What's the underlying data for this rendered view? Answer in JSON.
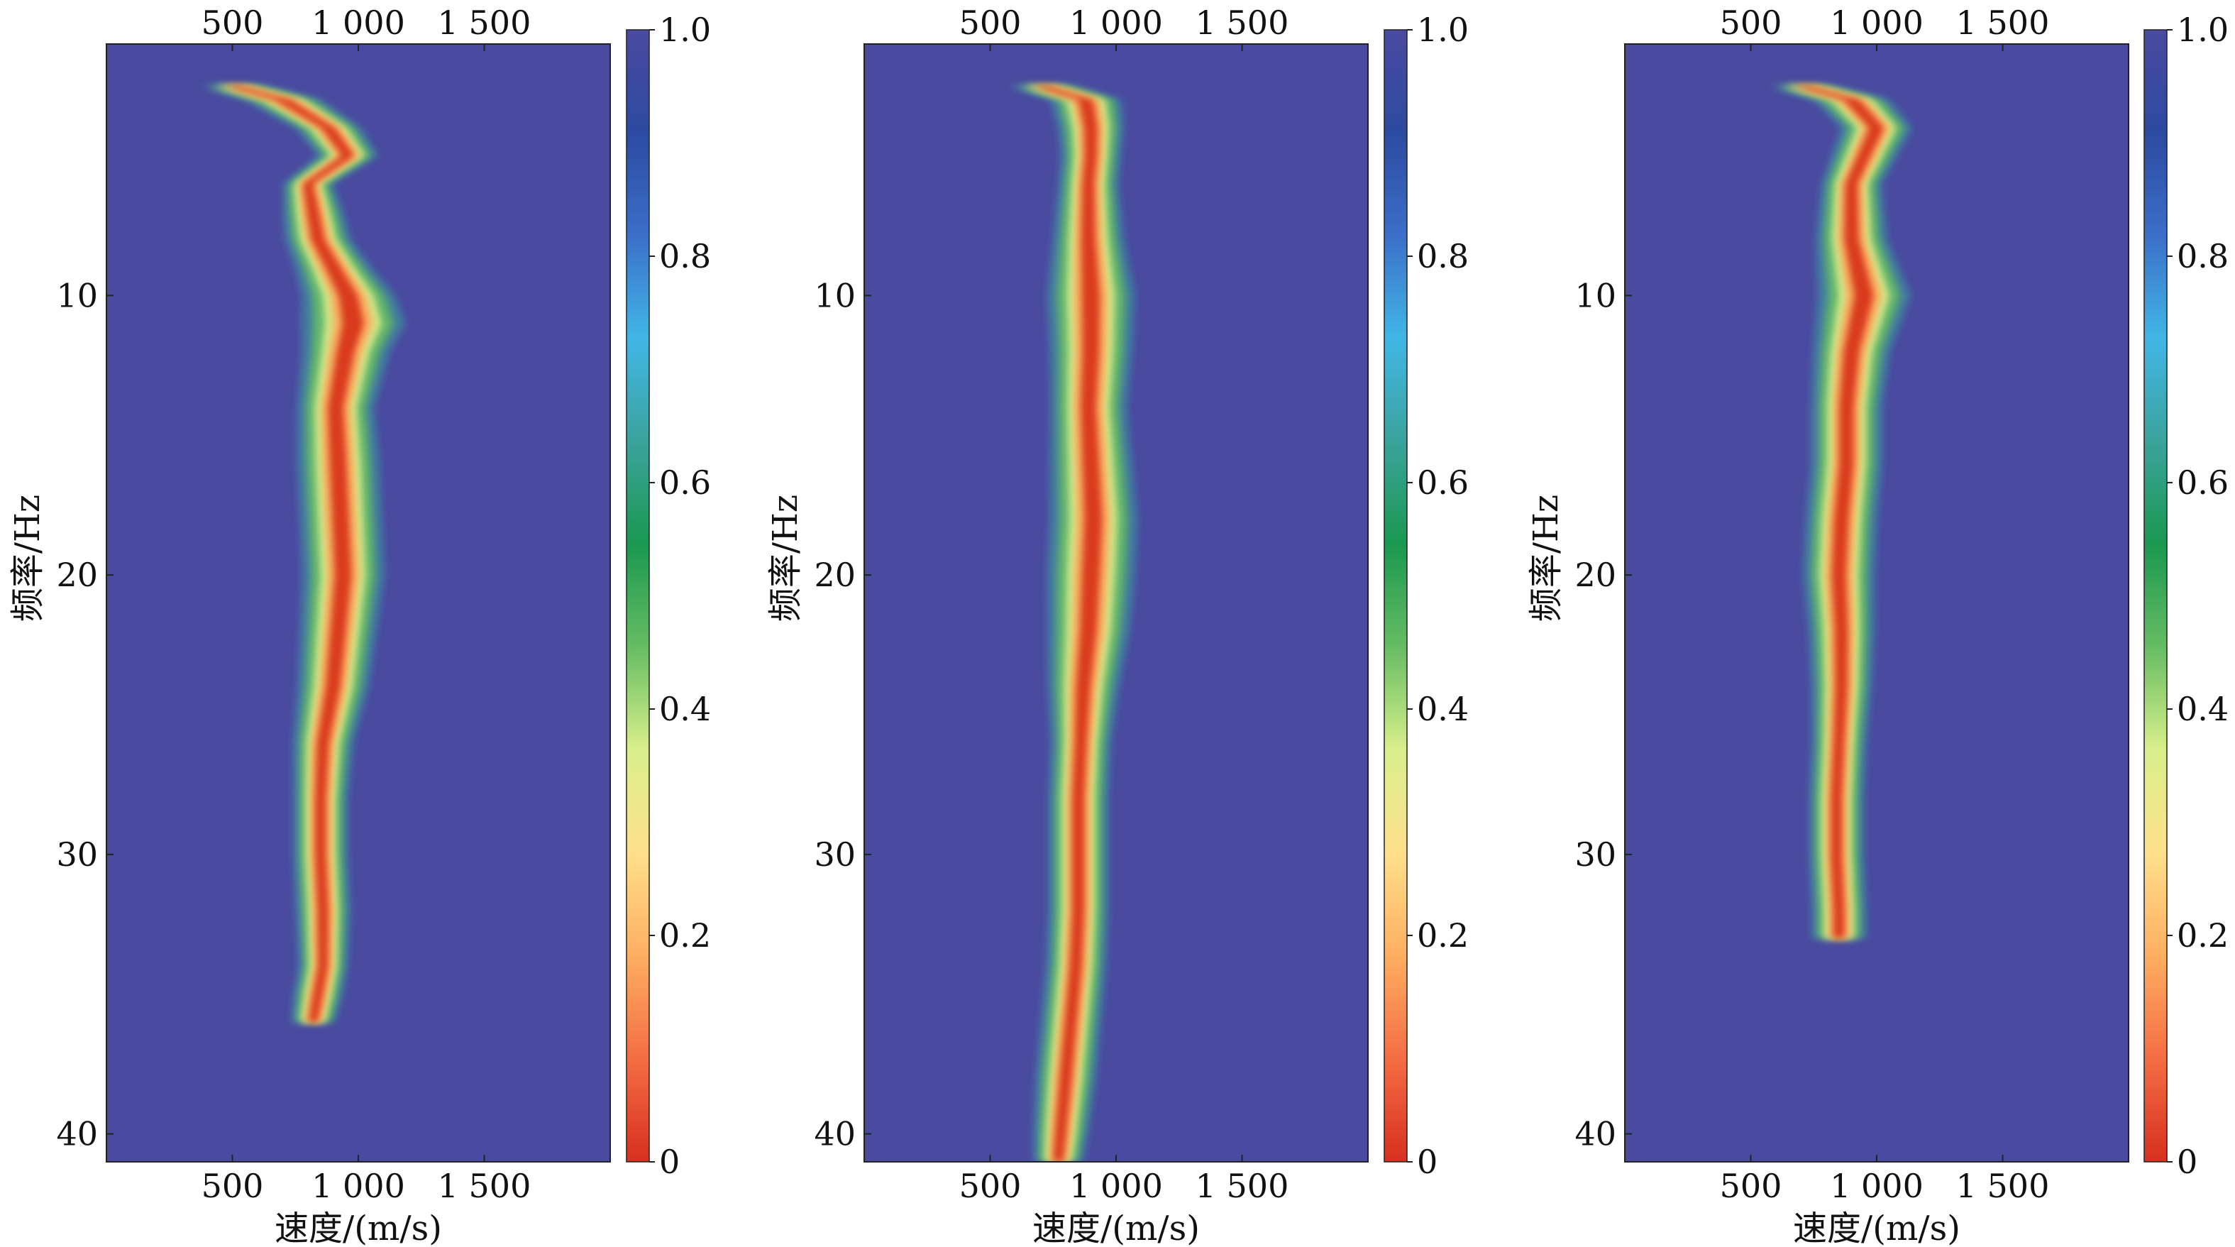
{
  "colors": {
    "background": "#4a4aa0",
    "colormap": [
      "#d7301f",
      "#f46d43",
      "#fdae61",
      "#fee08b",
      "#d9ef8b",
      "#66bd63",
      "#1a9850",
      "#3ba39c",
      "#41b6e6",
      "#3b6fc8",
      "#2c4aa0",
      "#4a4aa0"
    ],
    "peak": "#d93a1f"
  },
  "chart_data": [
    {
      "type": "heatmap",
      "xlabel": "速度/(m/s)",
      "ylabel": "频率/Hz",
      "xlim": [
        0,
        2000
      ],
      "ylim": [
        1,
        41
      ],
      "x_ticks": [
        "500",
        "1 000",
        "1 500"
      ],
      "x_tick_values": [
        500,
        1000,
        1500
      ],
      "y_ticks": [
        "10",
        "20",
        "30",
        "40"
      ],
      "y_tick_values": [
        10,
        20,
        30,
        40
      ],
      "y_inverted": true,
      "colorbar": {
        "ticks": [
          "0",
          "0.2",
          "0.4",
          "0.6",
          "0.8",
          "1.0"
        ],
        "range": [
          0,
          1
        ]
      },
      "ridge": {
        "freq": [
          2.5,
          3,
          4,
          5,
          6,
          7,
          8,
          9,
          10,
          11,
          12,
          14,
          16,
          18,
          20,
          22,
          24,
          26,
          28,
          30,
          32,
          34,
          35,
          36
        ],
        "velocity": [
          500,
          700,
          880,
          960,
          800,
          820,
          840,
          900,
          960,
          980,
          950,
          910,
          920,
          930,
          940,
          920,
          900,
          860,
          850,
          850,
          860,
          860,
          840,
          820
        ],
        "width": [
          120,
          140,
          120,
          110,
          90,
          110,
          120,
          140,
          170,
          190,
          160,
          140,
          150,
          150,
          150,
          140,
          130,
          110,
          100,
          100,
          100,
          90,
          90,
          80
        ]
      }
    },
    {
      "type": "heatmap",
      "xlabel": "速度/(m/s)",
      "ylabel": "频率/Hz",
      "xlim": [
        0,
        2000
      ],
      "ylim": [
        1,
        41
      ],
      "x_ticks": [
        "500",
        "1 000",
        "1 500"
      ],
      "x_tick_values": [
        500,
        1000,
        1500
      ],
      "y_ticks": [
        "10",
        "20",
        "30",
        "40"
      ],
      "y_tick_values": [
        10,
        20,
        30,
        40
      ],
      "y_inverted": true,
      "colorbar": {
        "ticks": [
          "0",
          "0.2",
          "0.4",
          "0.6",
          "0.8",
          "1.0"
        ],
        "range": [
          0,
          1
        ]
      },
      "ridge": {
        "freq": [
          2.5,
          3,
          4,
          5,
          6,
          8,
          10,
          12,
          14,
          16,
          18,
          20,
          22,
          24,
          26,
          28,
          30,
          32,
          34,
          36,
          38,
          40,
          41
        ],
        "velocity": [
          700,
          880,
          900,
          900,
          890,
          890,
          900,
          900,
          890,
          900,
          910,
          900,
          890,
          870,
          860,
          850,
          850,
          850,
          840,
          820,
          800,
          780,
          770
        ],
        "width": [
          120,
          130,
          120,
          110,
          110,
          130,
          160,
          150,
          140,
          150,
          160,
          160,
          150,
          130,
          110,
          110,
          110,
          110,
          110,
          110,
          110,
          100,
          90
        ]
      }
    },
    {
      "type": "heatmap",
      "xlabel": "速度/(m/s)",
      "ylabel": "频率/Hz",
      "xlim": [
        0,
        2000
      ],
      "ylim": [
        1,
        41
      ],
      "x_ticks": [
        "500",
        "1 000",
        "1 500"
      ],
      "x_tick_values": [
        500,
        1000,
        1500
      ],
      "y_ticks": [
        "10",
        "20",
        "30",
        "40"
      ],
      "y_tick_values": [
        10,
        20,
        30,
        40
      ],
      "y_inverted": true,
      "colorbar": {
        "ticks": [
          "0",
          "0.2",
          "0.4",
          "0.6",
          "0.8",
          "1.0"
        ],
        "range": [
          0,
          1
        ]
      },
      "ridge": {
        "freq": [
          2.5,
          3,
          4,
          5,
          6,
          8,
          10,
          12,
          14,
          16,
          18,
          20,
          22,
          24,
          26,
          28,
          30,
          32,
          33
        ],
        "velocity": [
          700,
          900,
          1000,
          950,
          900,
          900,
          950,
          900,
          880,
          880,
          860,
          850,
          860,
          860,
          850,
          840,
          840,
          850,
          850
        ],
        "width": [
          120,
          140,
          130,
          120,
          110,
          130,
          170,
          140,
          130,
          130,
          130,
          130,
          120,
          110,
          100,
          100,
          100,
          100,
          100
        ]
      }
    }
  ]
}
